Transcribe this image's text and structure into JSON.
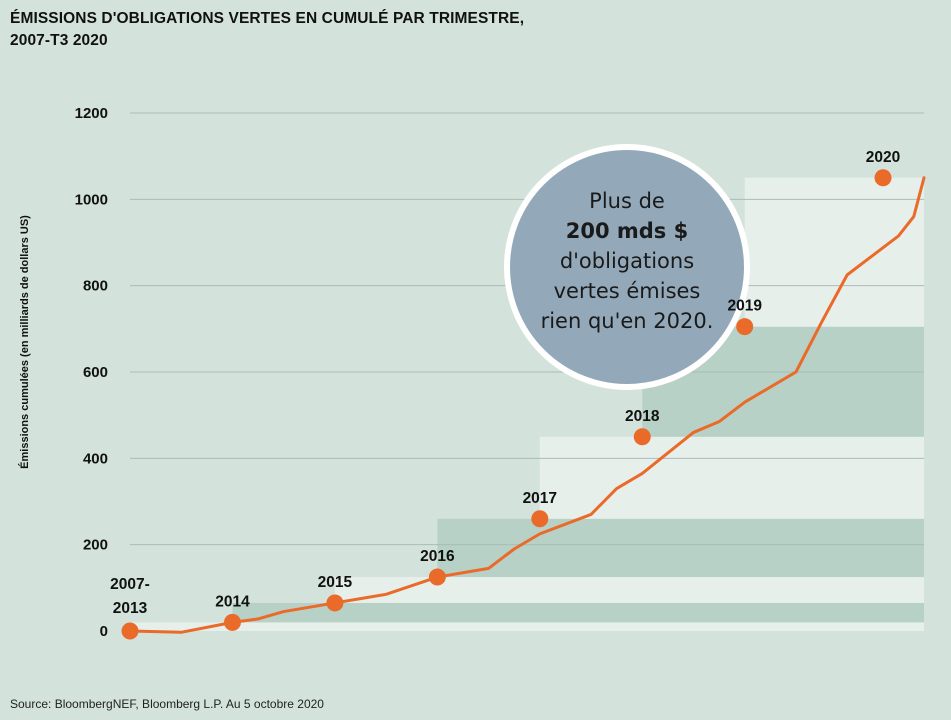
{
  "title_line1": "ÉMISSIONS D'OBLIGATIONS VERTES EN CUMULÉ PAR TRIMESTRE,",
  "title_line2": "2007-T3 2020",
  "source": "Source: BloombergNEF, Bloomberg L.P. Au 5 octobre 2020",
  "colors": {
    "background": "#d3e3dc",
    "line": "#ea6a2a",
    "band_light": "#e7efeb",
    "band_dark": "#b7d1c6",
    "bubble_fill": "#93a9b9",
    "bubble_stroke": "#ffffff",
    "grid": "#a9bdb5"
  },
  "callout": {
    "line1": "Plus de",
    "line2": "200 mds $",
    "line3": "d'obligations",
    "line4": "vertes émises",
    "line5": "rien qu'en 2020."
  },
  "chart_data": {
    "type": "line",
    "title": "ÉMISSIONS D'OBLIGATIONS VERTES EN CUMULÉ PAR TRIMESTRE, 2007-T3 2020",
    "xlabel": "",
    "ylabel": "Émissions cumulées (en milliards de dollars US)",
    "ylim": [
      0,
      1200
    ],
    "yticks": [
      0,
      200,
      400,
      600,
      800,
      1000,
      1200
    ],
    "grid": true,
    "x_domain": [
      0,
      15.5
    ],
    "series": [
      {
        "values_x": [
          0,
          1,
          2,
          2.5,
          3,
          4,
          4.5,
          5,
          6,
          7,
          7.5,
          8,
          9,
          9.5,
          10,
          11,
          11.5,
          12,
          13,
          13.5,
          14,
          15,
          15.3,
          15.5
        ],
        "values_y": [
          0,
          -3,
          20,
          28,
          45,
          65,
          75,
          85,
          125,
          145,
          190,
          225,
          270,
          330,
          365,
          460,
          485,
          530,
          600,
          715,
          825,
          915,
          960,
          1050
        ]
      }
    ],
    "points": [
      {
        "label": "2007-\n2013",
        "label_line1": "2007-",
        "label_line2": "2013",
        "x": 0,
        "y": 0
      },
      {
        "label": "2014",
        "x": 2,
        "y": 20
      },
      {
        "label": "2015",
        "x": 4,
        "y": 65
      },
      {
        "label": "2016",
        "x": 6,
        "y": 125
      },
      {
        "label": "2017",
        "x": 8,
        "y": 260
      },
      {
        "label": "2018",
        "x": 10,
        "y": 450
      },
      {
        "label": "2019",
        "x": 12,
        "y": 705
      },
      {
        "label": "2020",
        "x": 14.7,
        "y": 1050
      }
    ],
    "bands": [
      {
        "y0": 0,
        "y1": 20,
        "shade": "light"
      },
      {
        "y0": 20,
        "y1": 65,
        "shade": "dark"
      },
      {
        "y0": 65,
        "y1": 125,
        "shade": "light"
      },
      {
        "y0": 125,
        "y1": 260,
        "shade": "dark"
      },
      {
        "y0": 260,
        "y1": 450,
        "shade": "light"
      },
      {
        "y0": 450,
        "y1": 705,
        "shade": "dark"
      },
      {
        "y0": 705,
        "y1": 1050,
        "shade": "light"
      }
    ]
  }
}
